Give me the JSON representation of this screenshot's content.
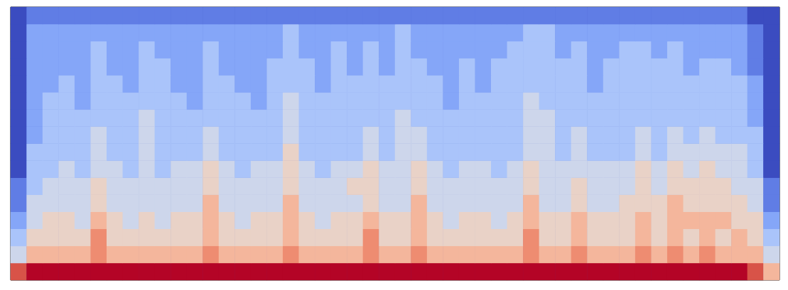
{
  "chart_data": {
    "type": "heatmap",
    "tick_labels": false,
    "grid": false,
    "zlim": [
      0,
      9
    ],
    "values": [
      [
        8,
        9,
        9,
        9,
        9,
        9,
        9,
        9,
        9,
        9,
        9,
        9,
        9,
        9,
        9,
        9,
        9,
        9,
        9,
        9,
        9,
        9,
        9,
        9,
        9,
        9,
        9,
        9,
        9,
        9,
        9,
        9,
        9,
        9,
        9,
        9,
        9,
        9,
        9,
        9,
        9,
        9,
        9,
        9,
        9,
        9,
        8,
        6
      ],
      [
        4,
        6,
        6,
        6,
        6,
        7,
        6,
        6,
        6,
        6,
        6,
        6,
        7,
        6,
        6,
        6,
        6,
        7,
        6,
        6,
        6,
        6,
        7,
        6,
        6,
        7,
        6,
        6,
        6,
        6,
        6,
        6,
        7,
        6,
        6,
        7,
        6,
        6,
        6,
        7,
        6,
        7,
        6,
        7,
        6,
        6,
        6,
        4
      ],
      [
        3,
        5,
        5,
        5,
        5,
        7,
        5,
        5,
        5,
        5,
        5,
        5,
        6,
        5,
        5,
        5,
        5,
        6,
        5,
        5,
        5,
        5,
        7,
        5,
        5,
        6,
        5,
        5,
        5,
        5,
        5,
        5,
        7,
        5,
        5,
        6,
        5,
        5,
        5,
        6,
        5,
        6,
        5,
        6,
        5,
        6,
        5,
        3
      ],
      [
        2,
        4,
        5,
        5,
        4,
        6,
        5,
        4,
        5,
        4,
        5,
        5,
        6,
        5,
        4,
        5,
        5,
        6,
        5,
        4,
        5,
        5,
        6,
        5,
        5,
        6,
        5,
        4,
        5,
        5,
        4,
        5,
        6,
        5,
        5,
        6,
        5,
        5,
        5,
        6,
        5,
        6,
        6,
        6,
        6,
        5,
        5,
        2
      ],
      [
        1,
        4,
        4,
        4,
        4,
        5,
        4,
        4,
        4,
        4,
        4,
        4,
        6,
        4,
        4,
        4,
        4,
        6,
        4,
        4,
        4,
        4,
        5,
        4,
        4,
        6,
        4,
        4,
        4,
        4,
        4,
        4,
        6,
        4,
        4,
        5,
        4,
        4,
        5,
        5,
        5,
        6,
        5,
        5,
        5,
        5,
        4,
        1
      ],
      [
        1,
        3,
        4,
        4,
        4,
        5,
        4,
        4,
        4,
        4,
        4,
        4,
        5,
        4,
        4,
        4,
        4,
        5,
        4,
        4,
        4,
        5,
        5,
        4,
        4,
        5,
        4,
        4,
        4,
        4,
        4,
        4,
        5,
        4,
        4,
        5,
        4,
        4,
        4,
        5,
        4,
        5,
        5,
        5,
        5,
        4,
        4,
        1
      ],
      [
        0,
        3,
        3,
        4,
        3,
        4,
        4,
        3,
        4,
        3,
        4,
        4,
        5,
        4,
        3,
        4,
        4,
        5,
        4,
        3,
        4,
        4,
        5,
        4,
        4,
        5,
        4,
        3,
        4,
        4,
        3,
        4,
        5,
        4,
        4,
        4,
        4,
        4,
        4,
        5,
        4,
        5,
        4,
        5,
        4,
        4,
        3,
        0
      ],
      [
        0,
        3,
        3,
        3,
        3,
        4,
        3,
        3,
        4,
        3,
        3,
        3,
        4,
        3,
        3,
        3,
        3,
        5,
        3,
        3,
        3,
        3,
        4,
        3,
        4,
        4,
        3,
        3,
        3,
        3,
        3,
        3,
        4,
        4,
        3,
        4,
        3,
        3,
        3,
        4,
        3,
        4,
        4,
        4,
        4,
        4,
        3,
        0
      ],
      [
        0,
        2,
        3,
        3,
        3,
        4,
        3,
        3,
        4,
        3,
        3,
        3,
        4,
        3,
        3,
        3,
        3,
        4,
        3,
        3,
        3,
        3,
        4,
        3,
        4,
        4,
        3,
        3,
        3,
        3,
        3,
        3,
        4,
        4,
        3,
        4,
        3,
        3,
        3,
        4,
        3,
        4,
        3,
        4,
        3,
        3,
        3,
        0
      ],
      [
        0,
        2,
        3,
        3,
        3,
        3,
        3,
        3,
        4,
        3,
        3,
        3,
        3,
        3,
        3,
        3,
        3,
        4,
        3,
        3,
        3,
        3,
        3,
        3,
        4,
        3,
        3,
        3,
        3,
        3,
        3,
        3,
        4,
        4,
        3,
        3,
        3,
        3,
        3,
        3,
        3,
        3,
        3,
        3,
        3,
        3,
        2,
        0
      ],
      [
        0,
        2,
        3,
        3,
        2,
        3,
        3,
        3,
        3,
        3,
        3,
        2,
        3,
        3,
        3,
        2,
        3,
        4,
        3,
        3,
        3,
        3,
        3,
        3,
        3,
        3,
        3,
        2,
        3,
        3,
        3,
        3,
        4,
        3,
        3,
        3,
        3,
        3,
        3,
        3,
        3,
        3,
        3,
        3,
        3,
        3,
        2,
        0
      ],
      [
        0,
        2,
        2,
        3,
        2,
        3,
        3,
        2,
        3,
        3,
        2,
        2,
        3,
        3,
        2,
        2,
        3,
        3,
        3,
        2,
        3,
        3,
        3,
        3,
        3,
        3,
        3,
        2,
        3,
        2,
        3,
        3,
        3,
        3,
        3,
        3,
        2,
        3,
        3,
        3,
        3,
        3,
        3,
        3,
        3,
        3,
        2,
        0
      ],
      [
        0,
        2,
        2,
        2,
        2,
        3,
        2,
        2,
        3,
        3,
        2,
        2,
        3,
        2,
        2,
        2,
        3,
        3,
        3,
        2,
        3,
        2,
        3,
        2,
        3,
        3,
        2,
        2,
        3,
        2,
        3,
        3,
        3,
        3,
        3,
        3,
        2,
        3,
        3,
        3,
        3,
        3,
        2,
        3,
        3,
        2,
        1,
        0
      ],
      [
        0,
        2,
        2,
        2,
        2,
        3,
        2,
        2,
        3,
        2,
        2,
        2,
        3,
        2,
        2,
        2,
        2,
        3,
        2,
        2,
        3,
        2,
        3,
        2,
        3,
        2,
        2,
        2,
        2,
        2,
        2,
        3,
        3,
        3,
        2,
        3,
        2,
        2,
        3,
        3,
        2,
        3,
        2,
        2,
        2,
        2,
        1,
        0
      ],
      [
        0,
        2,
        2,
        2,
        2,
        2,
        2,
        2,
        2,
        2,
        2,
        2,
        2,
        2,
        2,
        2,
        2,
        3,
        2,
        2,
        2,
        2,
        2,
        2,
        3,
        2,
        2,
        2,
        2,
        2,
        2,
        2,
        3,
        3,
        2,
        2,
        2,
        2,
        2,
        2,
        2,
        2,
        2,
        2,
        2,
        2,
        1,
        0
      ],
      [
        0,
        1,
        1,
        1,
        1,
        1,
        1,
        1,
        1,
        1,
        1,
        1,
        1,
        1,
        1,
        1,
        1,
        1,
        1,
        1,
        1,
        1,
        1,
        1,
        1,
        1,
        1,
        1,
        1,
        1,
        1,
        1,
        1,
        1,
        1,
        1,
        1,
        1,
        1,
        1,
        1,
        1,
        1,
        1,
        1,
        1,
        0,
        0
      ]
    ]
  }
}
